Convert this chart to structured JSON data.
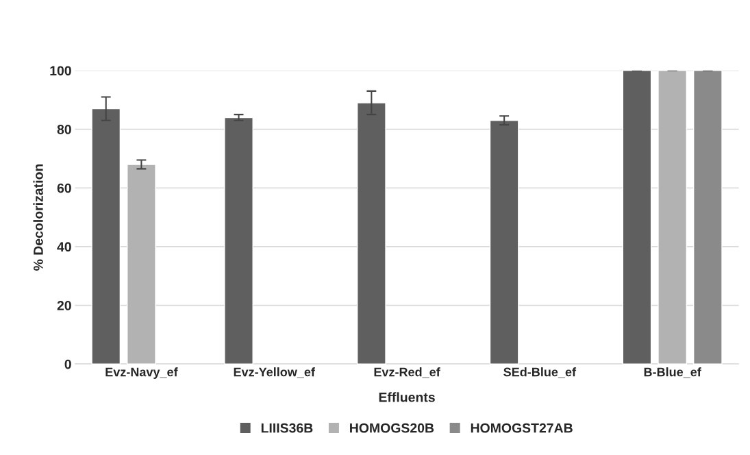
{
  "chart_data": {
    "type": "bar",
    "xlabel": "Effluents",
    "ylabel": "% Decolorization",
    "categories": [
      "Evz-Navy_ef",
      "Evz-Yellow_ef",
      "Evz-Red_ef",
      "SEd-Blue_ef",
      "B-Blue_ef"
    ],
    "series": [
      {
        "name": "LIIIS36B",
        "color": "#5f5f5f",
        "values": [
          87,
          84,
          89,
          83,
          100
        ],
        "errors": [
          4,
          1,
          4,
          1.5,
          0
        ]
      },
      {
        "name": "HOMOGS20B",
        "color": "#b2b2b2",
        "values": [
          68,
          null,
          null,
          null,
          100
        ],
        "errors": [
          1.5,
          null,
          null,
          null,
          0
        ]
      },
      {
        "name": "HOMOGST27AB",
        "color": "#8a8a8a",
        "values": [
          null,
          null,
          null,
          null,
          100
        ],
        "errors": [
          null,
          null,
          null,
          null,
          0
        ]
      }
    ],
    "ylim": [
      0,
      100
    ],
    "yticks": [
      0,
      20,
      40,
      60,
      80,
      100
    ],
    "grid": "y",
    "legend": "bottom"
  }
}
